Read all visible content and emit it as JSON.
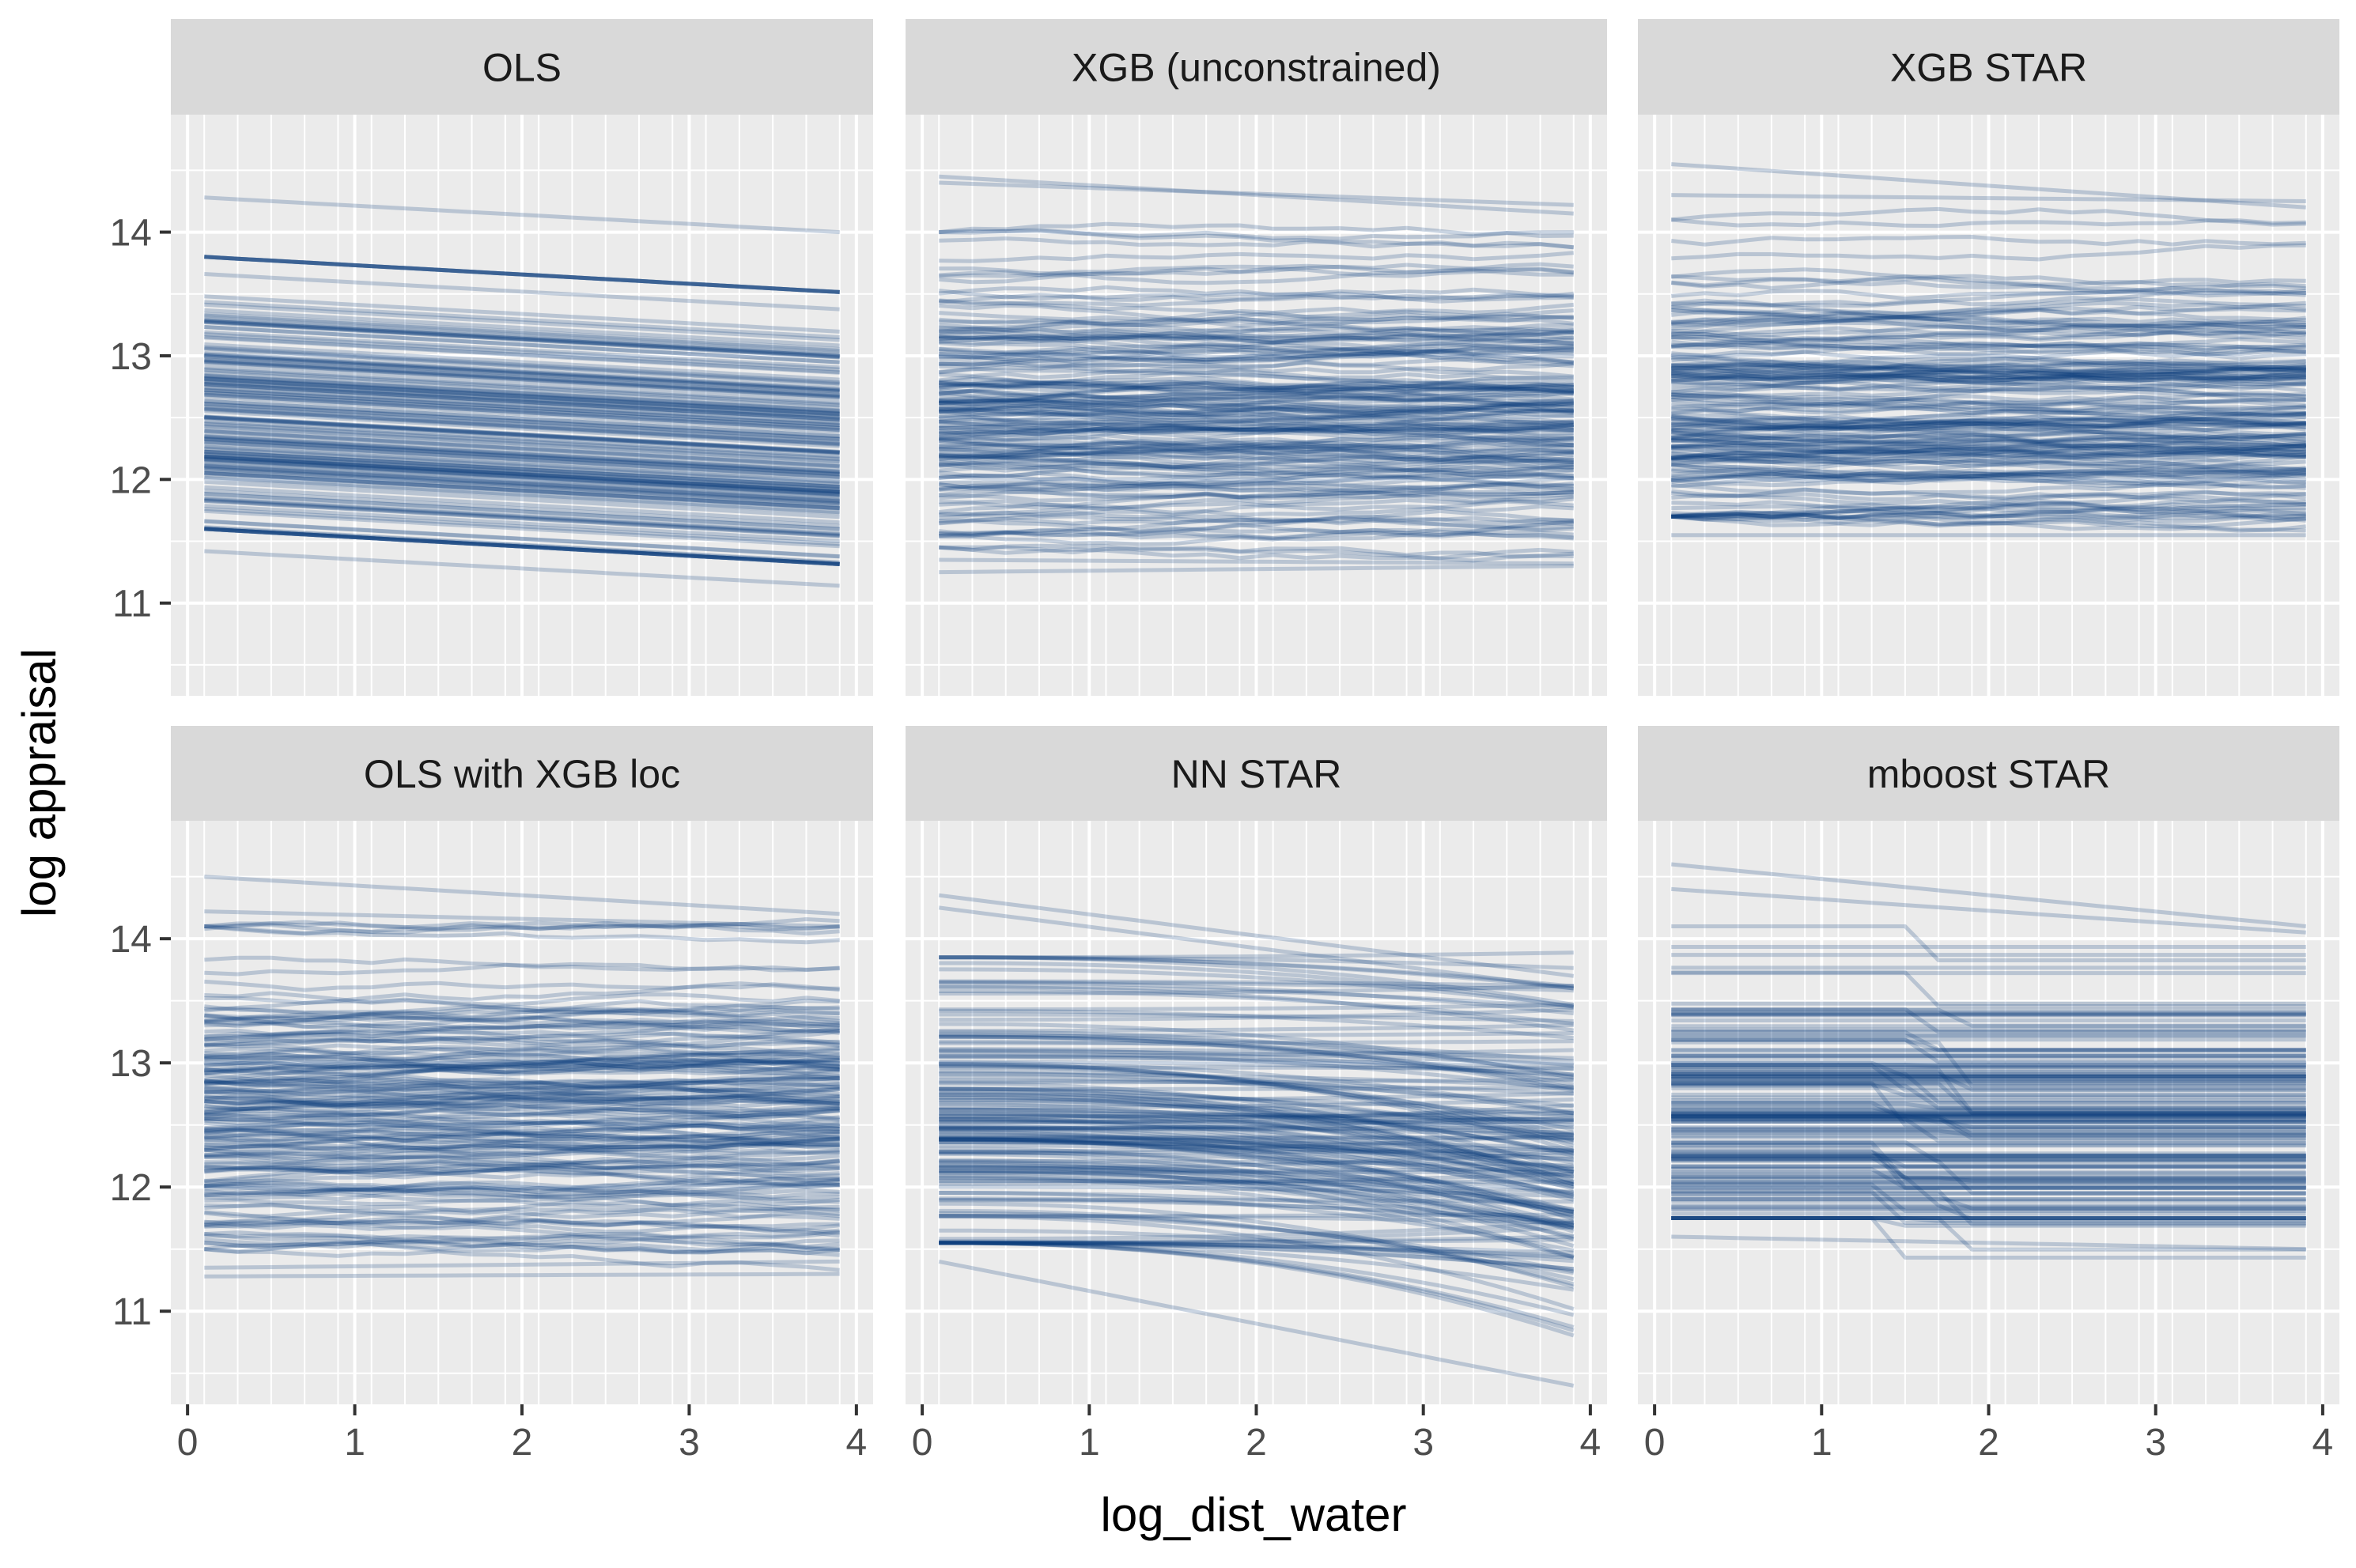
{
  "chart_data": {
    "type": "line",
    "facet_layout": "3 columns x 2 rows",
    "xlabel": "log_dist_water",
    "ylabel": "log appraisal",
    "xlim": [
      -0.1,
      4.1
    ],
    "ylim": [
      10.25,
      14.95
    ],
    "x_ticks": [
      0,
      1,
      2,
      3,
      4
    ],
    "y_ticks": [
      11,
      12,
      13,
      14
    ],
    "x_tick_labels": [
      "0",
      "1",
      "2",
      "3",
      "4"
    ],
    "y_tick_labels": [
      "11",
      "12",
      "13",
      "14"
    ],
    "line_color": "#0b3b7a",
    "x_grid": [
      0.1,
      0.3,
      0.5,
      0.7,
      0.9,
      1.1,
      1.3,
      1.5,
      1.7,
      1.9,
      2.1,
      2.3,
      2.5,
      2.7,
      2.9,
      3.1,
      3.3,
      3.5,
      3.7,
      3.9
    ],
    "panels": [
      {
        "id": "ols",
        "title": "OLS",
        "pattern": "linear",
        "baseline_range": [
          11.4,
          14.3
        ],
        "slope": -0.075,
        "extremes": [
          [
            11.42,
            11.14
          ],
          [
            14.28,
            14.0
          ]
        ]
      },
      {
        "id": "xgb",
        "title": "XGB (unconstrained)",
        "pattern": "step",
        "baseline_range": [
          11.25,
          14.5
        ],
        "drift": 0.0,
        "extremes": [
          [
            14.4,
            14.22
          ],
          [
            14.45,
            14.15
          ],
          [
            11.25,
            11.3
          ],
          [
            11.35,
            11.32
          ]
        ]
      },
      {
        "id": "xgbstar",
        "title": "XGB STAR",
        "pattern": "step",
        "baseline_range": [
          11.5,
          14.6
        ],
        "drift": 0.0,
        "extremes": [
          [
            14.55,
            14.2
          ],
          [
            14.3,
            14.25
          ],
          [
            11.55,
            11.55
          ]
        ]
      },
      {
        "id": "olsxgb",
        "title": "OLS with XGB loc",
        "pattern": "step",
        "baseline_range": [
          11.3,
          14.6
        ],
        "drift": 0.0,
        "extremes": [
          [
            14.5,
            14.2
          ],
          [
            14.22,
            14.1
          ],
          [
            11.35,
            11.4
          ],
          [
            11.28,
            11.3
          ]
        ]
      },
      {
        "id": "nn",
        "title": "NN STAR",
        "pattern": "curve",
        "baseline_range": [
          11.35,
          14.35
        ],
        "drift": -0.6,
        "extremes": [
          [
            14.35,
            13.7
          ],
          [
            14.25,
            13.6
          ],
          [
            11.4,
            10.4
          ]
        ]
      },
      {
        "id": "mboost",
        "title": "mboost STAR",
        "pattern": "drop",
        "baseline_range": [
          11.55,
          14.6
        ],
        "drift": 0.0,
        "extremes": [
          [
            14.6,
            14.1
          ],
          [
            14.4,
            14.05
          ],
          [
            11.6,
            11.5
          ]
        ]
      }
    ],
    "x": [
      0.1,
      0.3,
      0.5,
      0.7,
      0.9,
      1.1,
      1.3,
      1.5,
      1.7,
      1.9,
      2.1,
      2.3,
      2.5,
      2.7,
      2.9,
      3.1,
      3.3,
      3.5,
      3.7,
      3.9
    ],
    "n_lines_per_panel": 160
  }
}
